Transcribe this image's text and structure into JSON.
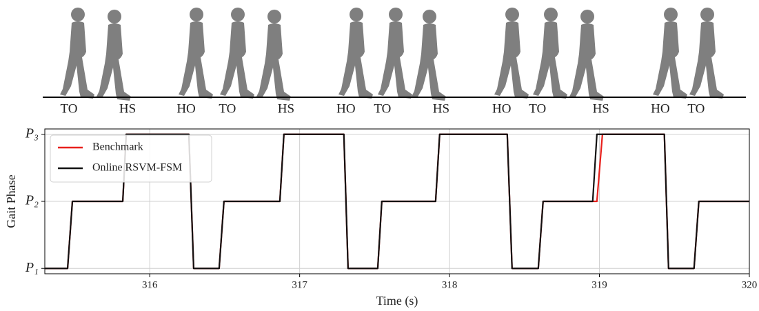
{
  "chart_data": {
    "type": "line",
    "xlabel": "Time (s)",
    "ylabel": "Gait Phase",
    "xlim": [
      315.3,
      320
    ],
    "xticks": [
      316,
      317,
      318,
      319,
      320
    ],
    "ylim": [
      0.92,
      3.08
    ],
    "yticks": [
      {
        "value": 1,
        "label": "P₁"
      },
      {
        "value": 2,
        "label": "P₂"
      },
      {
        "value": 3,
        "label": "P₃"
      }
    ],
    "grid": true,
    "legend": "upper left",
    "series": [
      {
        "name": "Benchmark",
        "color": "#e8201c",
        "x": [
          315.3,
          315.452,
          315.484,
          315.82,
          315.843,
          316.261,
          316.293,
          316.463,
          316.495,
          316.868,
          316.895,
          317.295,
          317.323,
          317.521,
          317.548,
          317.907,
          317.934,
          318.385,
          318.417,
          318.592,
          318.624,
          318.983,
          319.02,
          319.433,
          319.461,
          319.631,
          319.663,
          320.0
        ],
        "values": [
          1,
          1,
          2,
          2,
          3,
          3,
          1,
          1,
          2,
          2,
          3,
          3,
          1,
          1,
          2,
          2,
          3,
          3,
          1,
          1,
          2,
          2,
          3,
          3,
          1,
          1,
          2,
          2
        ]
      },
      {
        "name": "Online RSVM-FSM",
        "color": "#111111",
        "x": [
          315.3,
          315.452,
          315.484,
          315.82,
          315.843,
          316.261,
          316.293,
          316.463,
          316.495,
          316.868,
          316.895,
          317.295,
          317.323,
          317.521,
          317.548,
          317.907,
          317.934,
          318.385,
          318.417,
          318.592,
          318.624,
          318.955,
          318.983,
          319.433,
          319.461,
          319.631,
          319.663,
          320.0
        ],
        "values": [
          1,
          1,
          2,
          2,
          3,
          3,
          1,
          1,
          2,
          2,
          3,
          3,
          1,
          1,
          2,
          2,
          3,
          3,
          1,
          1,
          2,
          2,
          3,
          3,
          1,
          1,
          2,
          2
        ]
      }
    ],
    "annotations": [
      {
        "text": "TO",
        "x": 315.461
      },
      {
        "text": "HS",
        "x": 315.852
      },
      {
        "text": "HO",
        "x": 316.243
      },
      {
        "text": "TO",
        "x": 316.518
      },
      {
        "text": "HS",
        "x": 316.909
      },
      {
        "text": "HO",
        "x": 317.309
      },
      {
        "text": "TO",
        "x": 317.553
      },
      {
        "text": "HS",
        "x": 317.944
      },
      {
        "text": "HO",
        "x": 318.348
      },
      {
        "text": "TO",
        "x": 318.587
      },
      {
        "text": "HS",
        "x": 319.01
      },
      {
        "text": "HO",
        "x": 319.406
      },
      {
        "text": "TO",
        "x": 319.645
      }
    ]
  }
}
